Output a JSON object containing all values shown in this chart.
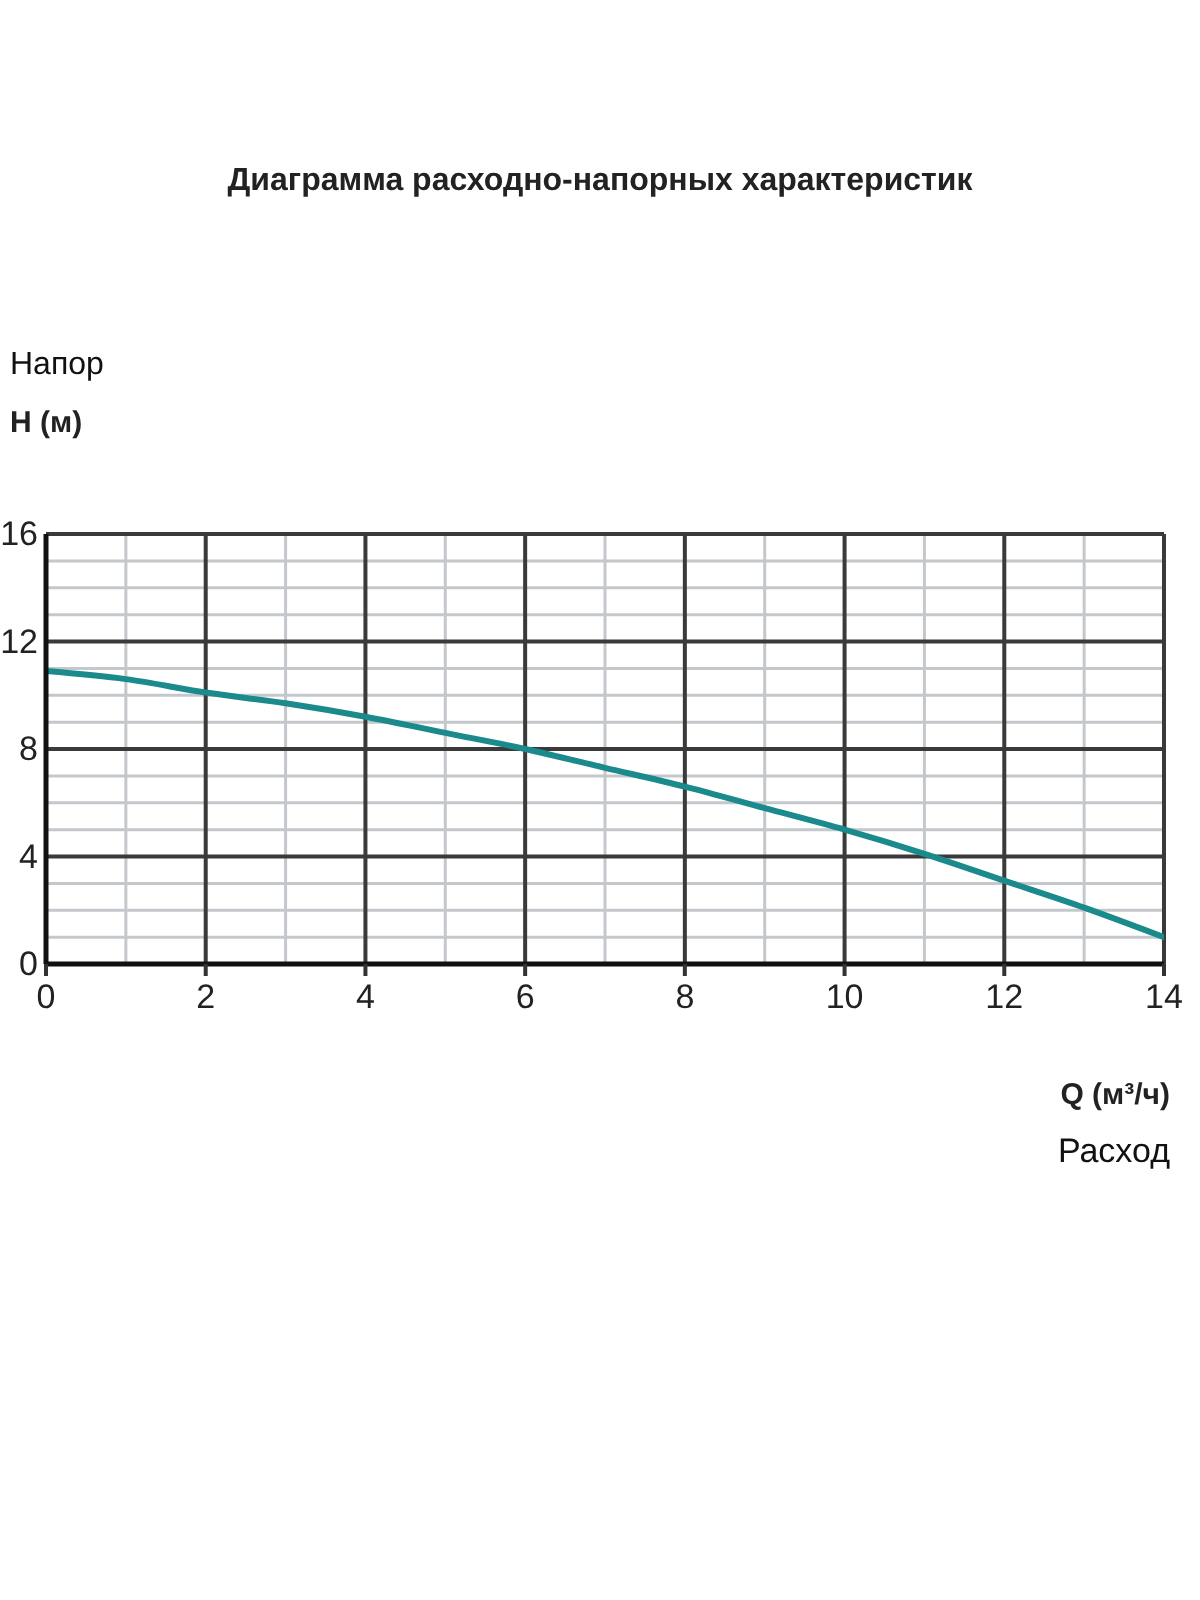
{
  "chart_data": {
    "type": "line",
    "title": "Диаграмма расходно-напорных характеристик",
    "xlabel": "Q (м³/ч)",
    "ylabel": "H (м)",
    "annotations": [
      "Напор",
      "Расход"
    ],
    "x": [
      0,
      1,
      2,
      3,
      4,
      5,
      6,
      7,
      8,
      9,
      10,
      11,
      12,
      13,
      14
    ],
    "values": [
      10.9,
      10.6,
      10.1,
      9.7,
      9.2,
      8.6,
      8.0,
      7.3,
      6.6,
      5.8,
      5.0,
      4.1,
      3.1,
      2.1,
      1.0
    ],
    "color": "#1b8a8c",
    "xlim": [
      0,
      14
    ],
    "ylim": [
      0,
      16
    ],
    "xticks": [
      0,
      {
        "value": 1,
        "label": null
      },
      2,
      {
        "value": 3,
        "label": null
      },
      4,
      {
        "value": 5,
        "label": null
      },
      6,
      {
        "value": 7,
        "label": null
      },
      8,
      {
        "value": 9,
        "label": null
      },
      10,
      {
        "value": 11,
        "label": null
      },
      12,
      {
        "value": 13,
        "label": null
      },
      14
    ],
    "yticks": [
      0,
      {
        "value": 1,
        "label": null
      },
      {
        "value": 2,
        "label": null
      },
      {
        "value": 3,
        "label": null
      },
      4,
      {
        "value": 5,
        "label": null
      },
      {
        "value": 6,
        "label": null
      },
      {
        "value": 7,
        "label": null
      },
      8,
      {
        "value": 9,
        "label": null
      },
      {
        "value": 10,
        "label": null
      },
      {
        "value": 11,
        "label": null
      },
      12,
      {
        "value": 13,
        "label": null
      },
      {
        "value": 14,
        "label": null
      },
      {
        "value": 15,
        "label": null
      },
      16
    ],
    "grid": true
  }
}
